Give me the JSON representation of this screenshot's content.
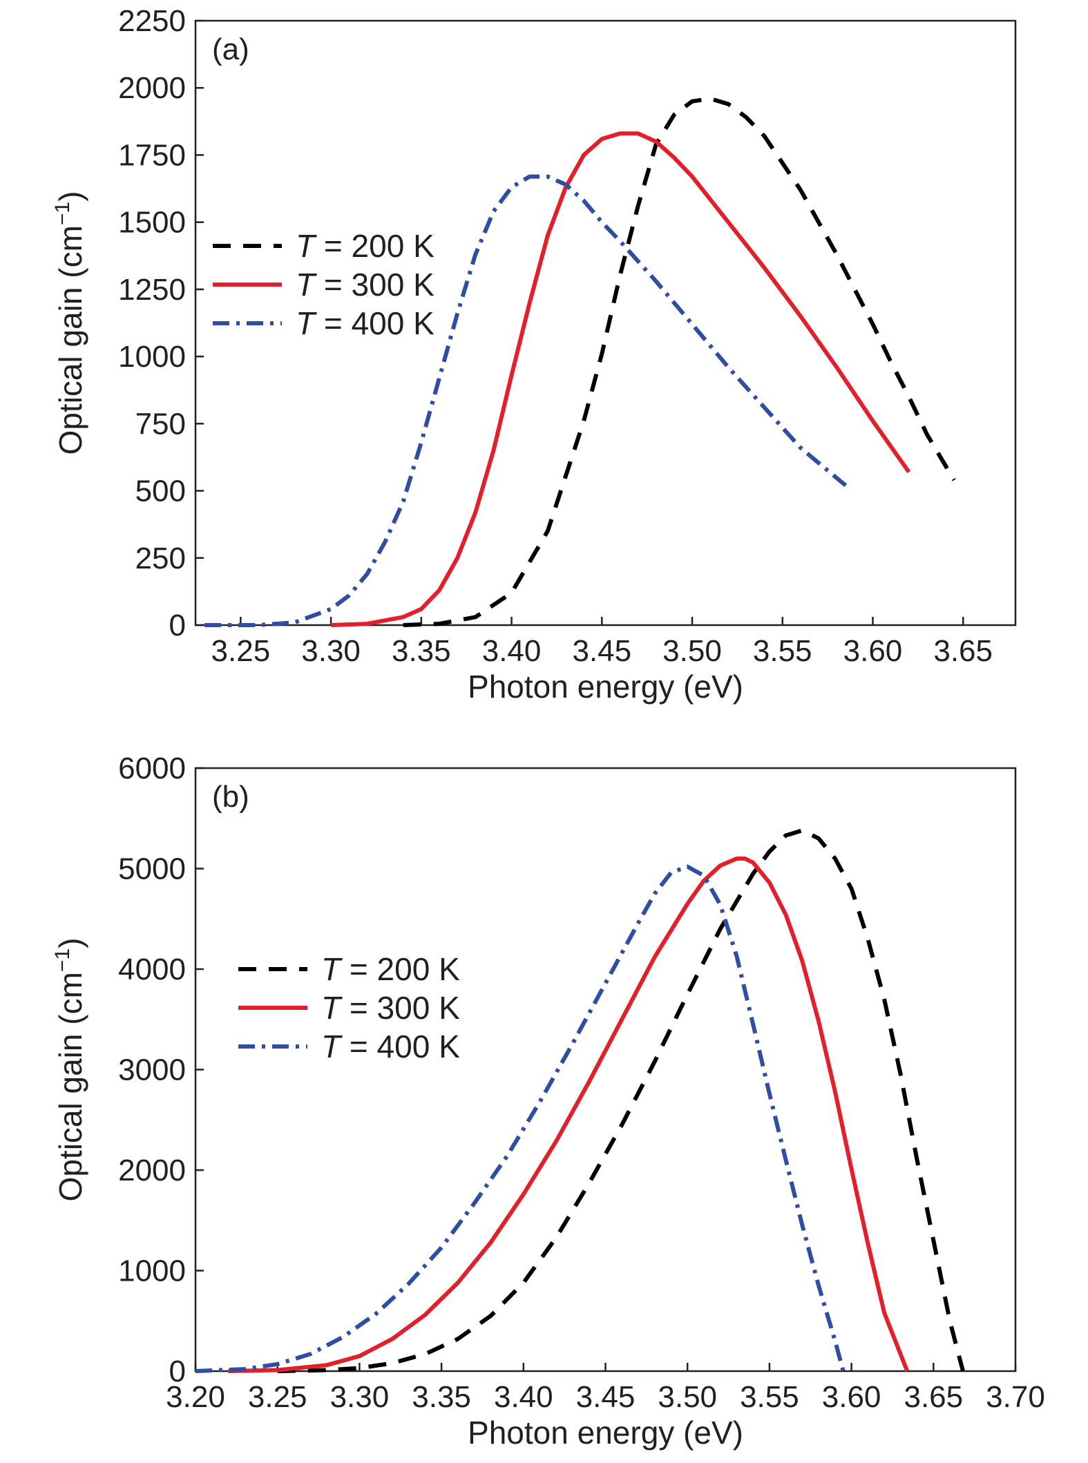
{
  "chart_data": [
    {
      "type": "line",
      "panel_label": "(a)",
      "xlabel": "Photon energy (eV)",
      "ylabel": "Optical gain (cm",
      "ylabel_sup": "−1",
      "ylabel_close": ")",
      "xlim": [
        3.225,
        3.679
      ],
      "ylim": [
        0,
        2250
      ],
      "xticks": [
        "3.25",
        "3.30",
        "3.35",
        "3.40",
        "3.45",
        "3.50",
        "3.55",
        "3.60",
        "3.65"
      ],
      "yticks": [
        "0",
        "250",
        "500",
        "750",
        "1000",
        "1250",
        "1500",
        "1750",
        "2000",
        "2250"
      ],
      "grid": false,
      "legend_position": "left-middle",
      "series": [
        {
          "name": "T = 200 K",
          "name_var": "T",
          "name_rest": " = 200 K",
          "color": "#000000",
          "style": "dashed",
          "x": [
            3.34,
            3.36,
            3.38,
            3.4,
            3.42,
            3.44,
            3.45,
            3.46,
            3.47,
            3.48,
            3.49,
            3.5,
            3.51,
            3.52,
            3.53,
            3.54,
            3.55,
            3.56,
            3.57,
            3.58,
            3.59,
            3.6,
            3.61,
            3.62,
            3.63,
            3.645
          ],
          "y": [
            0,
            5,
            30,
            120,
            350,
            760,
            1010,
            1300,
            1560,
            1790,
            1900,
            1950,
            1960,
            1940,
            1890,
            1820,
            1720,
            1620,
            1500,
            1380,
            1250,
            1120,
            980,
            850,
            710,
            540
          ]
        },
        {
          "name": "T = 300 K",
          "name_var": "T",
          "name_rest": " = 300 K",
          "color": "#e3202a",
          "style": "solid",
          "x": [
            3.3,
            3.32,
            3.34,
            3.35,
            3.36,
            3.37,
            3.38,
            3.39,
            3.4,
            3.41,
            3.42,
            3.43,
            3.44,
            3.45,
            3.46,
            3.47,
            3.48,
            3.49,
            3.5,
            3.52,
            3.54,
            3.56,
            3.58,
            3.6,
            3.62
          ],
          "y": [
            0,
            5,
            30,
            60,
            130,
            250,
            420,
            650,
            930,
            1200,
            1450,
            1630,
            1750,
            1810,
            1830,
            1830,
            1800,
            1740,
            1670,
            1500,
            1330,
            1150,
            960,
            760,
            570
          ]
        },
        {
          "name": "T = 400 K",
          "name_var": "T",
          "name_rest": " = 400 K",
          "color": "#2e4da3",
          "style": "dashdot",
          "x": [
            3.23,
            3.26,
            3.28,
            3.3,
            3.31,
            3.32,
            3.33,
            3.34,
            3.35,
            3.36,
            3.37,
            3.38,
            3.39,
            3.4,
            3.41,
            3.42,
            3.43,
            3.44,
            3.45,
            3.46,
            3.48,
            3.5,
            3.52,
            3.54,
            3.56,
            3.585
          ],
          "y": [
            0,
            0,
            10,
            60,
            110,
            190,
            310,
            460,
            680,
            920,
            1160,
            1380,
            1540,
            1630,
            1670,
            1670,
            1640,
            1580,
            1500,
            1430,
            1280,
            1120,
            960,
            810,
            660,
            520
          ]
        }
      ]
    },
    {
      "type": "line",
      "panel_label": "(b)",
      "xlabel": "Photon energy (eV)",
      "ylabel": "Optical gain (cm",
      "ylabel_sup": "−1",
      "ylabel_close": ")",
      "xlim": [
        3.2,
        3.7
      ],
      "ylim": [
        0,
        6000
      ],
      "xticks": [
        "3.20",
        "3.25",
        "3.30",
        "3.35",
        "3.40",
        "3.45",
        "3.50",
        "3.55",
        "3.60",
        "3.65",
        "3.70"
      ],
      "yticks": [
        "0",
        "1000",
        "2000",
        "3000",
        "4000",
        "5000",
        "6000"
      ],
      "grid": false,
      "legend_position": "left-middle",
      "series": [
        {
          "name": "T = 200 K",
          "name_var": "T",
          "name_rest": " = 200 K",
          "color": "#000000",
          "style": "dashed",
          "x": [
            3.25,
            3.28,
            3.3,
            3.32,
            3.34,
            3.36,
            3.38,
            3.4,
            3.42,
            3.44,
            3.46,
            3.48,
            3.5,
            3.52,
            3.54,
            3.55,
            3.56,
            3.57,
            3.58,
            3.59,
            3.6,
            3.61,
            3.62,
            3.63,
            3.64,
            3.65,
            3.66,
            3.668
          ],
          "y": [
            0,
            10,
            30,
            80,
            170,
            320,
            550,
            880,
            1330,
            1870,
            2450,
            3080,
            3750,
            4400,
            4950,
            5170,
            5330,
            5380,
            5300,
            5100,
            4800,
            4300,
            3700,
            2950,
            2100,
            1300,
            500,
            0
          ]
        },
        {
          "name": "T = 300 K",
          "name_var": "T",
          "name_rest": " = 300 K",
          "color": "#e3202a",
          "style": "solid",
          "x": [
            3.22,
            3.25,
            3.28,
            3.3,
            3.32,
            3.34,
            3.36,
            3.38,
            3.4,
            3.42,
            3.44,
            3.46,
            3.48,
            3.5,
            3.51,
            3.52,
            3.53,
            3.535,
            3.54,
            3.55,
            3.56,
            3.57,
            3.58,
            3.59,
            3.6,
            3.61,
            3.62,
            3.634
          ],
          "y": [
            0,
            10,
            60,
            150,
            320,
            560,
            880,
            1280,
            1760,
            2290,
            2880,
            3500,
            4120,
            4650,
            4880,
            5030,
            5100,
            5100,
            5060,
            4860,
            4540,
            4080,
            3480,
            2780,
            2010,
            1270,
            580,
            0
          ]
        },
        {
          "name": "T = 400 K",
          "name_var": "T",
          "name_rest": " = 400 K",
          "color": "#2e4da3",
          "style": "dashdot",
          "x": [
            3.2,
            3.23,
            3.25,
            3.27,
            3.29,
            3.31,
            3.33,
            3.35,
            3.37,
            3.39,
            3.41,
            3.43,
            3.45,
            3.47,
            3.48,
            3.49,
            3.5,
            3.51,
            3.52,
            3.53,
            3.54,
            3.55,
            3.56,
            3.57,
            3.58,
            3.59,
            3.595
          ],
          "y": [
            0,
            20,
            70,
            170,
            340,
            570,
            870,
            1230,
            1670,
            2140,
            2680,
            3260,
            3860,
            4460,
            4750,
            4960,
            5020,
            4930,
            4640,
            4130,
            3450,
            2760,
            2100,
            1450,
            850,
            300,
            0
          ]
        }
      ]
    }
  ]
}
